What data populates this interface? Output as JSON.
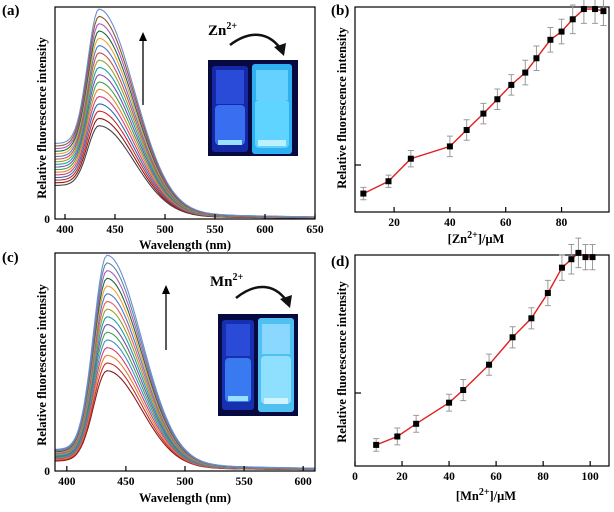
{
  "chart_data": [
    {
      "id": "a",
      "panel_label": "(a)",
      "type": "line",
      "title": "",
      "xlabel": "Wavelength (nm)",
      "ylabel": "Relative fluorescence intensity",
      "xlim": [
        390,
        650
      ],
      "ylim": [
        0,
        1.0
      ],
      "xticks": [
        400,
        450,
        500,
        550,
        600,
        650
      ],
      "ytick_labels": [
        "0"
      ],
      "annotation": {
        "ion": "Zn",
        "charge": "2+",
        "arrow": "increasing"
      },
      "series": {
        "count": 17,
        "peak_wavelength": 434,
        "peak_intensity_range": [
          0.44,
          0.99
        ],
        "left_edge_fraction": 0.36,
        "tail_decay_nm": 46,
        "colors": [
          "#444444",
          "#8b1a1a",
          "#cc2a2a",
          "#2f6fb5",
          "#d5407a",
          "#e0832f",
          "#3fa34d",
          "#7f4fa8",
          "#1aa0b0",
          "#9aa02a",
          "#c9504e",
          "#4e78c8",
          "#f0a030",
          "#1a6b3a",
          "#b055c0",
          "#8b5a2b",
          "#6a8fd0"
        ]
      }
    },
    {
      "id": "b",
      "panel_label": "(b)",
      "type": "scatter",
      "title": "",
      "xlabel": "[Zn2+]/μM",
      "xlabel_parts": {
        "pre": "[Zn",
        "sup": "2+",
        "post": "]/μM"
      },
      "ylabel": "Relative fluorescence intensity",
      "xlim": [
        6,
        97
      ],
      "ylim": [
        0,
        1.0
      ],
      "xticks": [
        20,
        40,
        60,
        80
      ],
      "x": [
        9,
        18,
        26,
        40,
        46,
        52,
        57,
        62,
        67,
        71,
        76,
        80,
        84,
        88,
        92,
        95
      ],
      "y": [
        0.09,
        0.15,
        0.26,
        0.32,
        0.4,
        0.48,
        0.55,
        0.62,
        0.68,
        0.75,
        0.84,
        0.88,
        0.94,
        0.99,
        0.99,
        0.98
      ],
      "error": [
        0.03,
        0.03,
        0.04,
        0.05,
        0.05,
        0.05,
        0.05,
        0.05,
        0.06,
        0.06,
        0.06,
        0.06,
        0.07,
        0.07,
        0.07,
        0.07
      ],
      "marker_color": "#000000",
      "line_color": "#e02020"
    },
    {
      "id": "c",
      "panel_label": "(c)",
      "type": "line",
      "title": "",
      "xlabel": "Wavelength (nm)",
      "ylabel": "Relative fluorescence intensity",
      "xlim": [
        390,
        610
      ],
      "ylim": [
        0,
        1.0
      ],
      "xticks": [
        400,
        450,
        500,
        550,
        600
      ],
      "ytick_labels": [
        "0"
      ],
      "annotation": {
        "ion": "Mn",
        "charge": "2+",
        "arrow": "increasing"
      },
      "series": {
        "count": 16,
        "peak_wavelength": 434,
        "peak_intensity_range": [
          0.46,
          0.99
        ],
        "left_edge_fraction": 0.1,
        "tail_decay_nm": 38,
        "colors": [
          "#8b1a1a",
          "#c03030",
          "#e0832f",
          "#d5407a",
          "#3f8fd0",
          "#3fa34d",
          "#7f4fa8",
          "#1aa0b0",
          "#9aa02a",
          "#e06060",
          "#4e78c8",
          "#f0a030",
          "#1a6b3a",
          "#b055c0",
          "#5a8a9a",
          "#6a8fd0"
        ]
      }
    },
    {
      "id": "d",
      "panel_label": "(d)",
      "type": "scatter",
      "title": "",
      "xlabel": "[Mn2+]/μM",
      "xlabel_parts": {
        "pre": "[Mn",
        "sup": "2+",
        "post": "]/μM"
      },
      "ylabel": "Relative fluorescence intensity",
      "xlim": [
        0,
        108
      ],
      "ylim": [
        0,
        1.0
      ],
      "xticks": [
        0,
        20,
        40,
        60,
        80,
        100
      ],
      "x": [
        9,
        18,
        26,
        40,
        46,
        57,
        67,
        75,
        82,
        88,
        92,
        95,
        98,
        101
      ],
      "y": [
        0.1,
        0.14,
        0.2,
        0.3,
        0.36,
        0.48,
        0.61,
        0.7,
        0.82,
        0.94,
        0.98,
        1.01,
        0.99,
        0.99
      ],
      "error": [
        0.03,
        0.04,
        0.04,
        0.04,
        0.05,
        0.05,
        0.05,
        0.05,
        0.06,
        0.06,
        0.07,
        0.07,
        0.06,
        0.06
      ],
      "marker_color": "#000000",
      "line_color": "#e02020"
    }
  ]
}
